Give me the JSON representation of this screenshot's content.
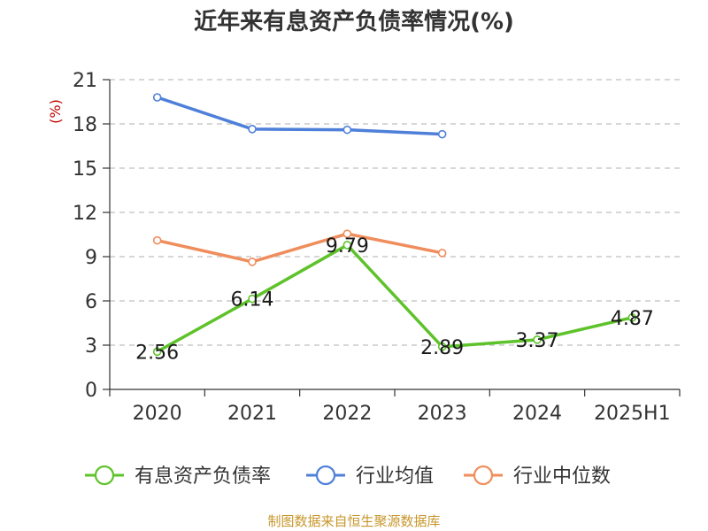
{
  "chart_data": {
    "type": "line",
    "title": "近年来有息资产负债率情况(%)",
    "ylabel": "(%)",
    "categories": [
      "2020",
      "2021",
      "2022",
      "2023",
      "2024",
      "2025H1"
    ],
    "ylim": [
      0,
      21
    ],
    "yticks": [
      0,
      3,
      6,
      9,
      12,
      15,
      18,
      21
    ],
    "grid": true,
    "legend_position": "bottom",
    "series": [
      {
        "name": "有息资产负债率",
        "color": "#5ec22a",
        "values": [
          2.56,
          6.14,
          9.79,
          2.89,
          3.37,
          4.87
        ],
        "labels": [
          "2.56",
          "6.14",
          "9.79",
          "2.89",
          "3.37",
          "4.87"
        ]
      },
      {
        "name": "行业均值",
        "color": "#4e7fd9",
        "values": [
          19.8,
          17.65,
          17.6,
          17.3,
          null,
          null
        ]
      },
      {
        "name": "行业中位数",
        "color": "#f08d5c",
        "values": [
          10.1,
          8.65,
          10.55,
          9.25,
          null,
          null
        ]
      }
    ]
  },
  "source": "制图数据来自恒生聚源数据库"
}
